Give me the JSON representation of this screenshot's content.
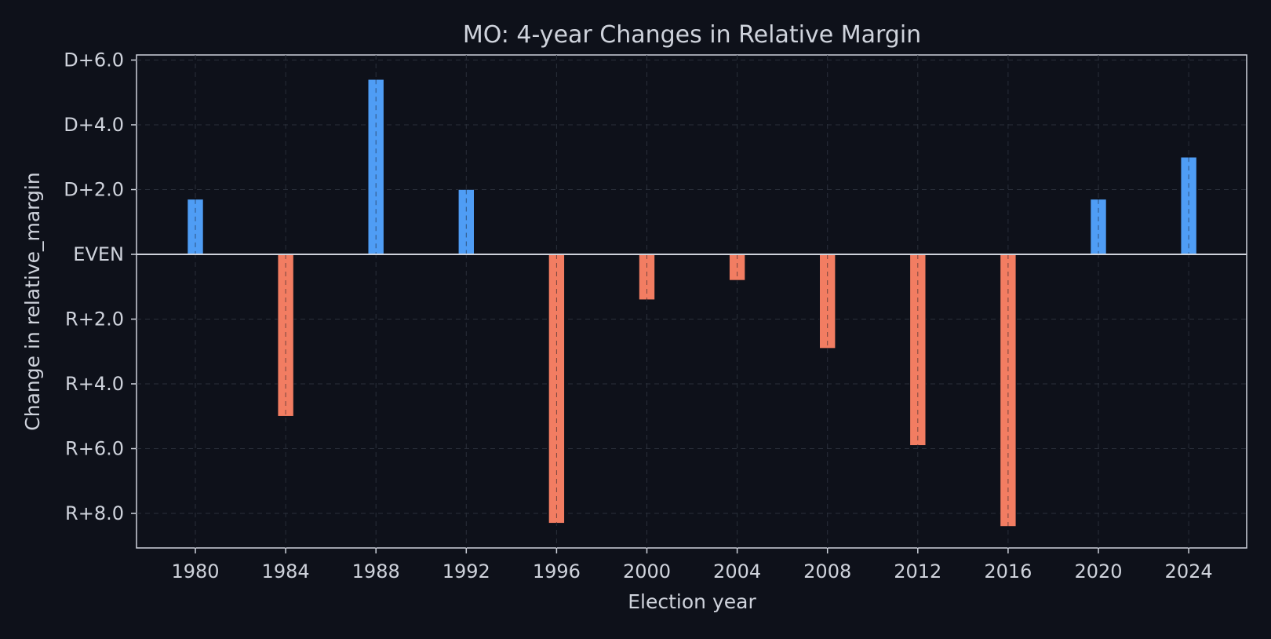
{
  "chart_data": {
    "type": "bar",
    "title": "MO: 4-year Changes in Relative Margin",
    "xlabel": "Election year",
    "ylabel": "Change in relative_margin",
    "categories": [
      "1980",
      "1984",
      "1988",
      "1992",
      "1996",
      "2000",
      "2004",
      "2008",
      "2012",
      "2016",
      "2020",
      "2024"
    ],
    "values": [
      1.7,
      -5.0,
      5.4,
      2.0,
      -8.3,
      -1.4,
      -0.8,
      -2.9,
      -5.9,
      -8.4,
      1.7,
      3.0
    ],
    "ylim": [
      -9.1,
      6.2
    ],
    "yticks": [
      {
        "value": 6,
        "label": "D+6.0"
      },
      {
        "value": 4,
        "label": "D+4.0"
      },
      {
        "value": 2,
        "label": "D+2.0"
      },
      {
        "value": 0,
        "label": "EVEN"
      },
      {
        "value": -2,
        "label": "R+2.0"
      },
      {
        "value": -4,
        "label": "R+4.0"
      },
      {
        "value": -6,
        "label": "R+6.0"
      },
      {
        "value": -8,
        "label": "R+8.0"
      }
    ],
    "grid": true,
    "legend": "none",
    "colors": {
      "positive": "#4f9df5",
      "negative": "#f27d62",
      "background": "#0e111a",
      "text": "#cfd3dc",
      "zero_line": "#cfd3dc",
      "grid": "#2a2f3a"
    }
  }
}
